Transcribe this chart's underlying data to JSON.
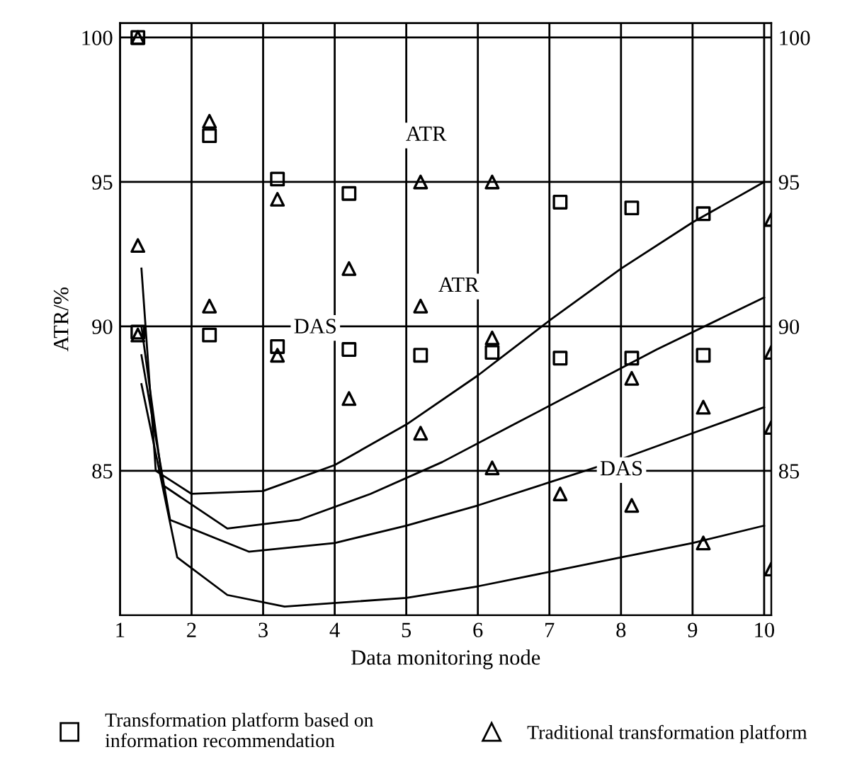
{
  "chart_data": {
    "type": "scatter",
    "xlabel": "Data monitoring node",
    "ylabel": "ATR/%",
    "xlim": [
      1,
      10.1
    ],
    "xticks": [
      1,
      2,
      3,
      4,
      5,
      6,
      7,
      8,
      9,
      10
    ],
    "ylim": [
      80,
      100.5
    ],
    "yticks": [
      85,
      90,
      95,
      100
    ],
    "y2lim": [
      80,
      100.5
    ],
    "y2ticks": [
      85,
      90,
      95,
      100
    ],
    "grid": true,
    "legend": "bottom",
    "series": [
      {
        "name": "Transformation platform based on\ninformation recommendation",
        "marker": "square",
        "color": "#000000",
        "x": [
          1.25,
          1.25,
          2.25,
          2.25,
          3.2,
          3.2,
          4.2,
          4.2,
          5.2,
          6.2,
          7.15,
          7.15,
          8.15,
          8.15,
          9.15,
          9.15
        ],
        "values": [
          100,
          89.8,
          96.6,
          89.7,
          95.1,
          89.3,
          94.6,
          89.2,
          89.0,
          89.1,
          94.3,
          88.9,
          94.1,
          88.9,
          93.9,
          89.0
        ]
      },
      {
        "name": "Traditional transformation platform",
        "marker": "triangle",
        "color": "#000000",
        "x": [
          1.25,
          1.25,
          1.25,
          2.25,
          2.25,
          3.2,
          3.2,
          4.2,
          4.2,
          5.2,
          5.2,
          5.2,
          6.2,
          6.2,
          6.2,
          7.15,
          8.15,
          8.15,
          9.15,
          9.15,
          10.1,
          10.1,
          10.1,
          10.1
        ],
        "values": [
          100,
          92.8,
          89.7,
          97.1,
          90.7,
          94.4,
          89.0,
          92.0,
          87.5,
          95.0,
          90.7,
          86.3,
          95.0,
          89.6,
          85.1,
          84.2,
          88.2,
          83.8,
          87.2,
          82.5,
          93.7,
          89.1,
          86.5,
          81.6
        ]
      },
      {
        "type": "line",
        "color": "#000000",
        "x": [
          1.3,
          1.5,
          2,
          3,
          4,
          5,
          6,
          7,
          8,
          9,
          10
        ],
        "values": [
          92,
          85,
          84.2,
          84.3,
          85.2,
          86.6,
          88.3,
          90.2,
          92.0,
          93.6,
          95
        ]
      },
      {
        "type": "line",
        "color": "#000000",
        "x": [
          1.3,
          1.6,
          2.5,
          3.5,
          4.5,
          5.5,
          6.5,
          7.5,
          8.5,
          9.5,
          10
        ],
        "values": [
          90,
          84.5,
          83.0,
          83.3,
          84.2,
          85.3,
          86.6,
          87.9,
          89.2,
          90.4,
          91
        ]
      },
      {
        "type": "line",
        "color": "#000000",
        "x": [
          1.3,
          1.7,
          2.8,
          4,
          5,
          6,
          7,
          8,
          9,
          10
        ],
        "values": [
          89,
          83.3,
          82.2,
          82.5,
          83.1,
          83.8,
          84.6,
          85.4,
          86.3,
          87.2
        ]
      },
      {
        "type": "line",
        "color": "#000000",
        "x": [
          1.3,
          1.8,
          2.5,
          3.3,
          5,
          6,
          7,
          8,
          9,
          10
        ],
        "values": [
          88,
          82,
          80.7,
          80.3,
          80.6,
          81.0,
          81.5,
          82.0,
          82.5,
          83.1
        ]
      }
    ],
    "annotations": [
      "ATR",
      "ATR",
      "DAS",
      "DAS"
    ]
  }
}
